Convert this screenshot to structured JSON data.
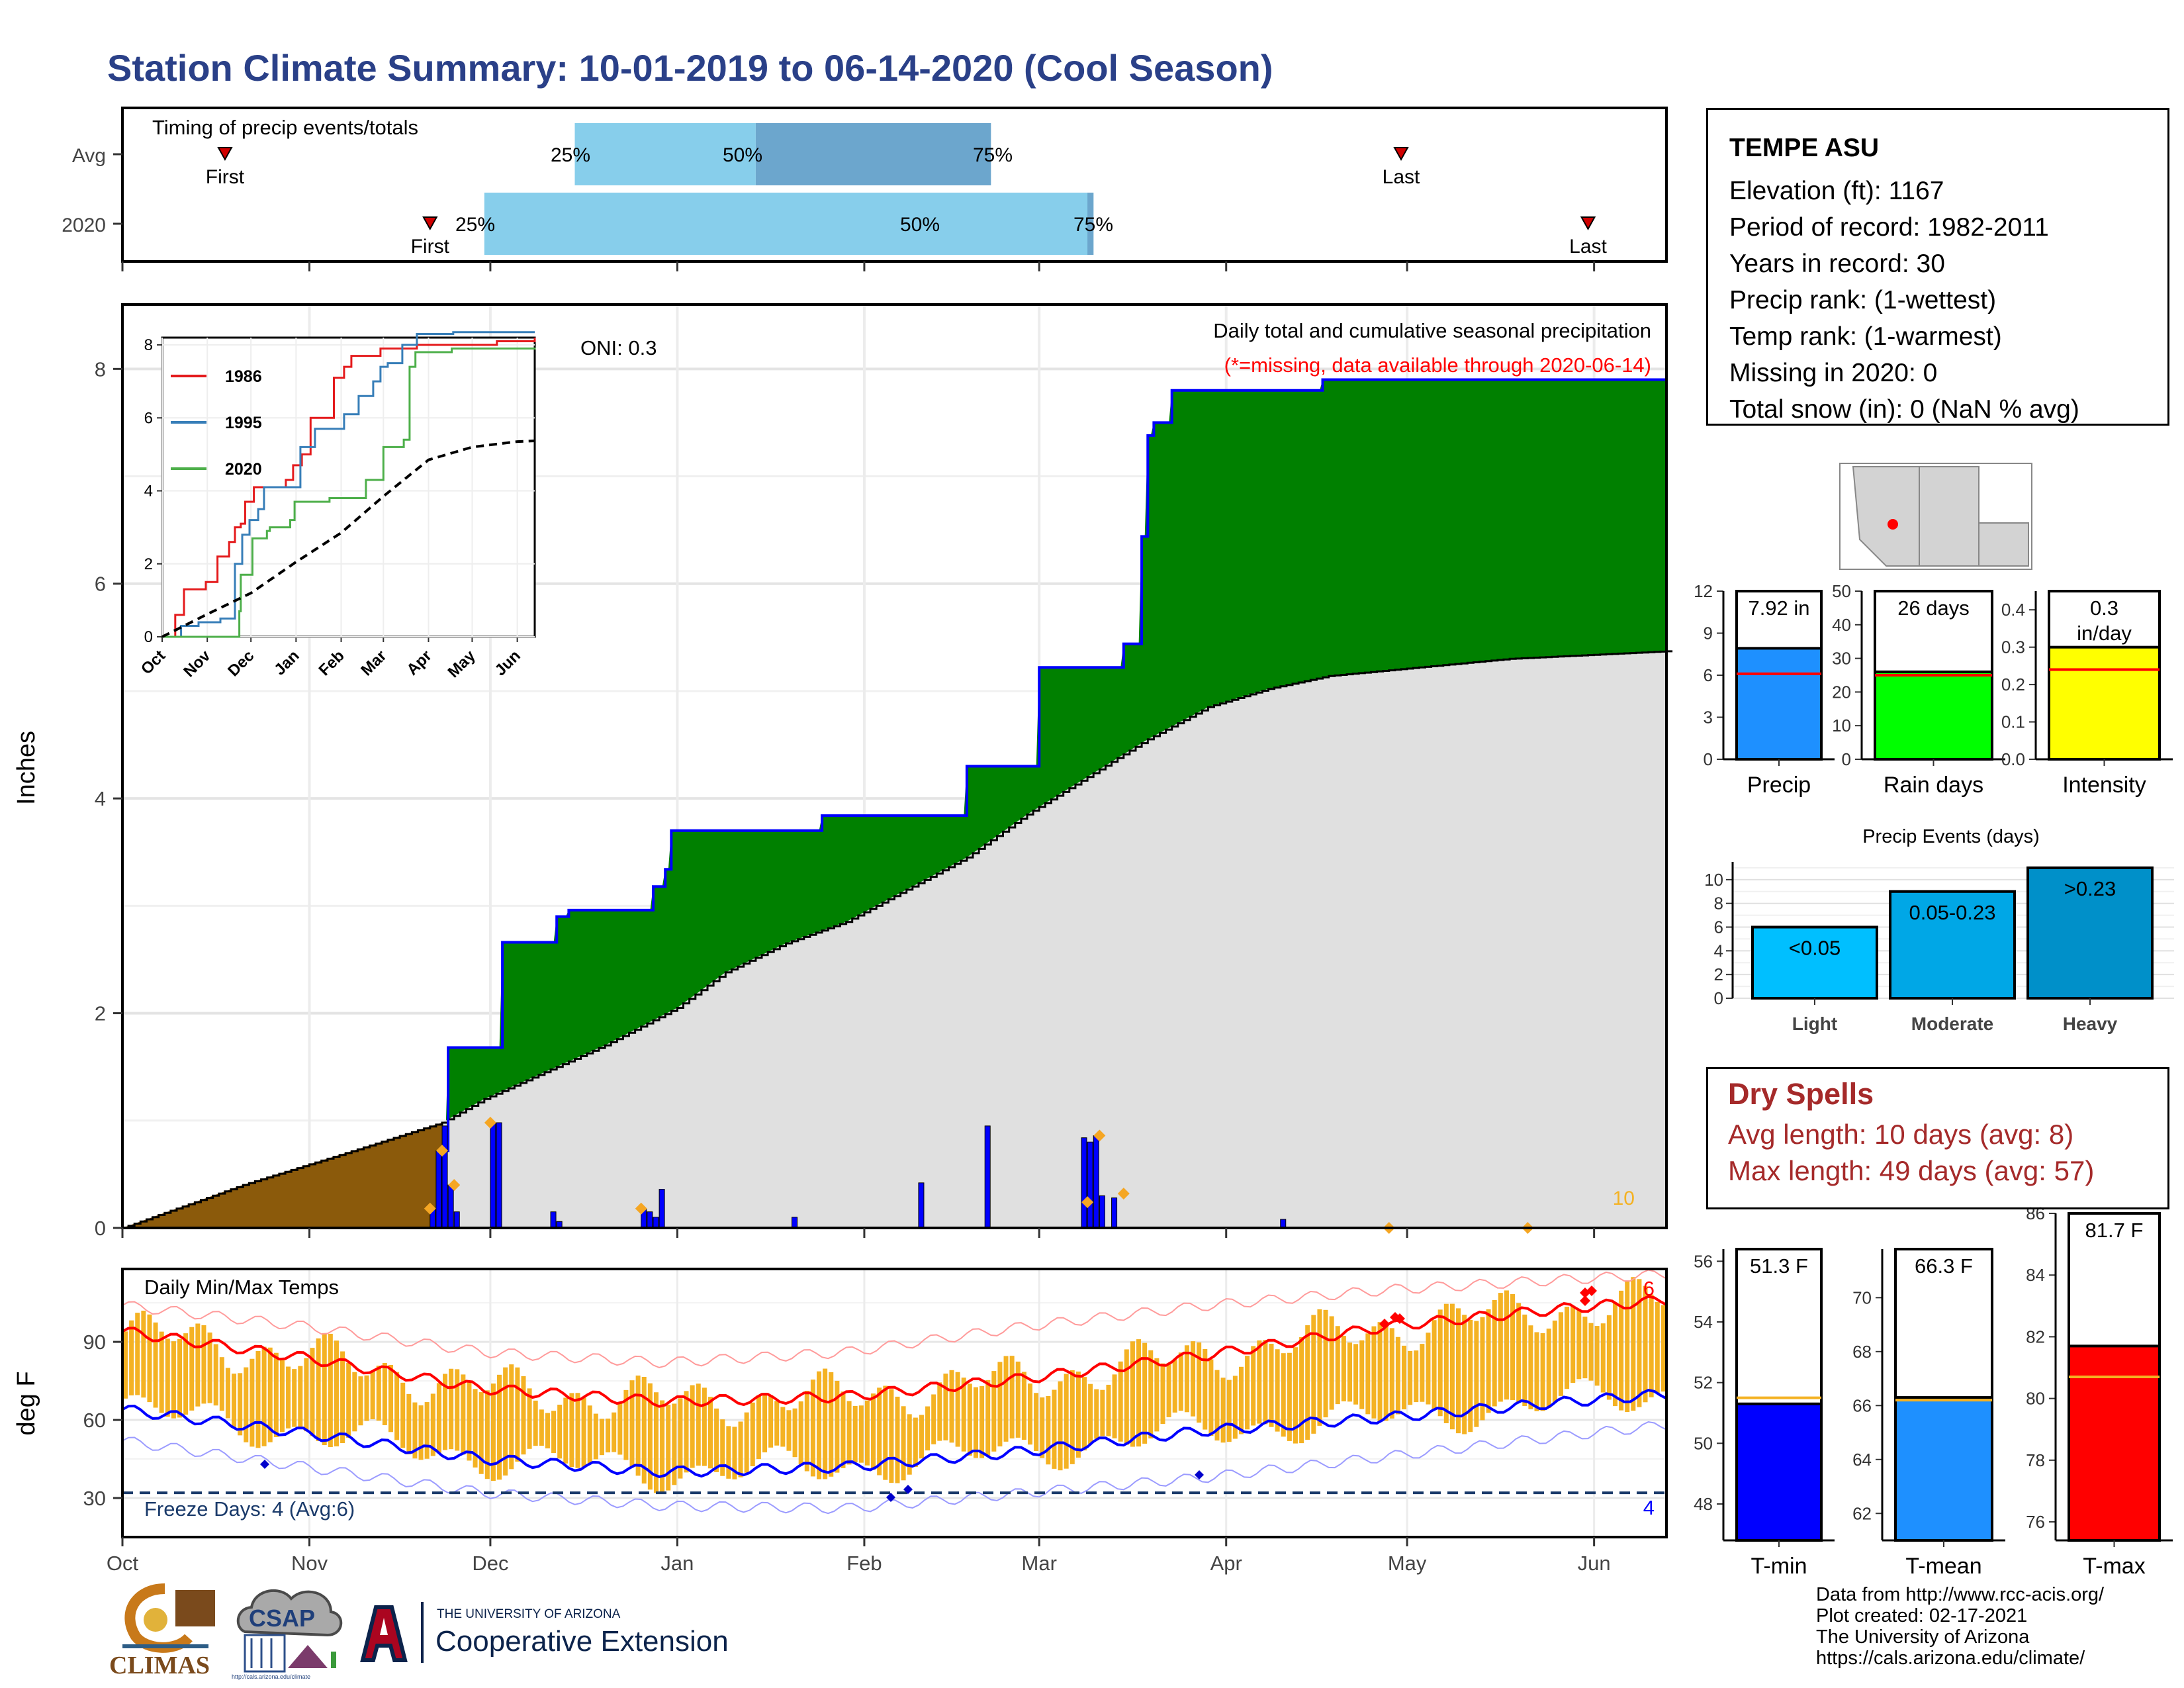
{
  "title": "Station Climate Summary: 10-01-2019 to 06-14-2020 (Cool Season)",
  "station": {
    "name": "TEMPE ASU",
    "rows": [
      "Elevation (ft): 1167",
      "Period of record: 1982-2011",
      "Years in record: 30",
      "Precip rank:  (1-wettest)",
      "Temp rank:  (1-warmest)",
      "Missing in 2020: 0",
      "Total snow (in): 0 (NaN % avg)"
    ]
  },
  "dry_spells": {
    "heading": "Dry Spells",
    "avg": "Avg length: 10 days (avg: 8)",
    "max": "Max length: 49 days (avg: 57)"
  },
  "footer": [
    "Data from http://www.rcc-acis.org/",
    "Plot created: 02-17-2021",
    "The University of Arizona",
    "https://cals.arizona.edu/climate/"
  ],
  "logos": {
    "climas": "CLIMAS",
    "csap": "CSAP",
    "ua_top": "THE UNIVERSITY OF ARIZONA",
    "ua_main": "Cooperative Extension",
    "csap_url": "http://cals.arizona.edu/climate"
  },
  "colors": {
    "title": "#2a4088",
    "green": "#008000",
    "blue": "#0000ff",
    "brown": "#8b5a0b",
    "gray": "#e0e0e0",
    "orange": "#f4b223",
    "red": "#ff0000",
    "dry": "#a52a2a"
  },
  "chart_data": [
    {
      "type": "bar",
      "title": "Timing of precip events/totals",
      "categories": [
        "Avg",
        "2020"
      ],
      "months": [
        "Oct",
        "Nov",
        "Dec",
        "Jan",
        "Feb",
        "Mar",
        "Apr",
        "May",
        "Jun"
      ],
      "series": [
        {
          "name": "Avg",
          "first": "10-18",
          "p25": "12-15",
          "p50": "01-14",
          "p75": "02-22",
          "last": "04-30"
        },
        {
          "name": "2020",
          "first": "11-21",
          "p25": "11-30",
          "p50": "03-10",
          "p75": "03-09",
          "last": "05-31"
        }
      ],
      "labels": {
        "first": "First",
        "last": "Last",
        "p25": "25%",
        "p50": "50%",
        "p75": "75%"
      }
    },
    {
      "type": "area",
      "title": "Daily total and cumulative seasonal precipitation",
      "subtitle": "(*=missing, data available through 2020-06-14)",
      "annotation": "ONI: 0.3",
      "corner_count": "10",
      "ylabel": "Inches",
      "ylim": [
        0,
        8.6
      ],
      "yticks": [
        0,
        2,
        4,
        6,
        8
      ],
      "xlim": [
        0,
        256
      ],
      "x_month_starts": [
        0,
        31,
        61,
        92,
        123,
        152,
        183,
        213,
        244
      ],
      "series": [
        {
          "name": "Cumulative 2020",
          "points": [
            [
              0,
              0
            ],
            [
              52,
              0
            ],
            [
              53,
              0.72
            ],
            [
              54,
              1.68
            ],
            [
              62,
              1.68
            ],
            [
              63,
              2.66
            ],
            [
              71,
              2.66
            ],
            [
              72,
              2.9
            ],
            [
              74,
              2.96
            ],
            [
              87,
              2.96
            ],
            [
              88,
              3.18
            ],
            [
              90,
              3.34
            ],
            [
              91,
              3.7
            ],
            [
              115,
              3.7
            ],
            [
              116,
              3.84
            ],
            [
              139,
              3.84
            ],
            [
              140,
              4.3
            ],
            [
              151,
              4.3
            ],
            [
              152,
              5.22
            ],
            [
              165,
              5.22
            ],
            [
              166,
              5.44
            ],
            [
              169,
              6.44
            ],
            [
              170,
              7.38
            ],
            [
              171,
              7.5
            ],
            [
              174,
              7.8
            ],
            [
              198,
              7.8
            ],
            [
              199,
              7.9
            ],
            [
              256,
              7.92
            ]
          ]
        },
        {
          "name": "Average cumulative",
          "points": [
            [
              0,
              0
            ],
            [
              20,
              0.4
            ],
            [
              40,
              0.75
            ],
            [
              53,
              0.98
            ],
            [
              60,
              1.2
            ],
            [
              70,
              1.45
            ],
            [
              80,
              1.7
            ],
            [
              92,
              2.05
            ],
            [
              100,
              2.38
            ],
            [
              110,
              2.65
            ],
            [
              120,
              2.85
            ],
            [
              130,
              3.15
            ],
            [
              140,
              3.45
            ],
            [
              150,
              3.85
            ],
            [
              160,
              4.2
            ],
            [
              170,
              4.55
            ],
            [
              180,
              4.85
            ],
            [
              190,
              5.02
            ],
            [
              200,
              5.14
            ],
            [
              215,
              5.22
            ],
            [
              230,
              5.3
            ],
            [
              256,
              5.37
            ]
          ]
        },
        {
          "name": "Daily precip",
          "bars": [
            [
              51,
              0.18
            ],
            [
              52,
              0.72
            ],
            [
              53,
              0.95
            ],
            [
              54,
              0.4
            ],
            [
              55,
              0.15
            ],
            [
              61,
              0.98
            ],
            [
              62,
              0.98
            ],
            [
              71,
              0.15
            ],
            [
              72,
              0.06
            ],
            [
              86,
              0.18
            ],
            [
              87,
              0.15
            ],
            [
              88,
              0.1
            ],
            [
              89,
              0.36
            ],
            [
              111,
              0.1
            ],
            [
              132,
              0.42
            ],
            [
              143,
              0.95
            ],
            [
              159,
              0.84
            ],
            [
              160,
              0.8
            ],
            [
              161,
              0.86
            ],
            [
              162,
              0.3
            ],
            [
              164,
              0.28
            ],
            [
              192,
              0.08
            ]
          ]
        }
      ],
      "inset": {
        "type": "line",
        "ylim": [
          0,
          8.2
        ],
        "yticks": [
          0,
          2,
          4,
          6,
          8
        ],
        "months": [
          "Oct",
          "Nov",
          "Dec",
          "Jan",
          "Feb",
          "Mar",
          "Apr",
          "May",
          "Jun"
        ],
        "series": [
          {
            "name": "1986",
            "color": "#e41a1c",
            "points": [
              [
                0,
                0
              ],
              [
                8,
                0
              ],
              [
                9,
                0.6
              ],
              [
                15,
                1.3
              ],
              [
                30,
                1.5
              ],
              [
                38,
                2.2
              ],
              [
                46,
                2.6
              ],
              [
                50,
                3.0
              ],
              [
                54,
                3.1
              ],
              [
                57,
                3.7
              ],
              [
                63,
                4.1
              ],
              [
                75,
                4.1
              ],
              [
                85,
                4.3
              ],
              [
                90,
                4.7
              ],
              [
                96,
                5.0
              ],
              [
                102,
                6.0
              ],
              [
                110,
                6.0
              ],
              [
                118,
                7.1
              ],
              [
                125,
                7.4
              ],
              [
                130,
                7.7
              ],
              [
                150,
                7.9
              ],
              [
                175,
                8.0
              ],
              [
                200,
                8.0
              ],
              [
                230,
                8.1
              ],
              [
                256,
                8.2
              ]
            ]
          },
          {
            "name": "1995",
            "color": "#377eb8",
            "points": [
              [
                0,
                0
              ],
              [
                12,
                0
              ],
              [
                13,
                0.3
              ],
              [
                25,
                0.4
              ],
              [
                40,
                0.5
              ],
              [
                50,
                2.0
              ],
              [
                55,
                2.8
              ],
              [
                60,
                3.2
              ],
              [
                66,
                3.5
              ],
              [
                70,
                4.1
              ],
              [
                85,
                4.1
              ],
              [
                95,
                5.2
              ],
              [
                105,
                5.7
              ],
              [
                120,
                5.7
              ],
              [
                125,
                6.1
              ],
              [
                135,
                6.6
              ],
              [
                145,
                7.0
              ],
              [
                150,
                7.4
              ],
              [
                155,
                7.5
              ],
              [
                165,
                8.0
              ],
              [
                175,
                8.3
              ],
              [
                190,
                8.3
              ],
              [
                200,
                8.5
              ],
              [
                256,
                8.5
              ]
            ]
          },
          {
            "name": "2020",
            "color": "#4daf4a",
            "points": [
              [
                0,
                0
              ],
              [
                52,
                0
              ],
              [
                53,
                0.7
              ],
              [
                54,
                1.7
              ],
              [
                62,
                2.7
              ],
              [
                72,
                2.9
              ],
              [
                74,
                3.0
              ],
              [
                88,
                3.2
              ],
              [
                91,
                3.7
              ],
              [
                115,
                3.8
              ],
              [
                140,
                4.3
              ],
              [
                152,
                5.2
              ],
              [
                166,
                5.4
              ],
              [
                170,
                7.4
              ],
              [
                174,
                7.8
              ],
              [
                199,
                7.9
              ],
              [
                256,
                7.92
              ]
            ]
          },
          {
            "name": "Average",
            "color": "#000000",
            "points": [
              [
                0,
                0
              ],
              [
                30,
                0.6
              ],
              [
                61,
                1.2
              ],
              [
                92,
                2.05
              ],
              [
                123,
                2.85
              ],
              [
                152,
                3.85
              ],
              [
                183,
                4.85
              ],
              [
                213,
                5.2
              ],
              [
                244,
                5.35
              ],
              [
                256,
                5.37
              ]
            ]
          }
        ]
      }
    },
    {
      "type": "line",
      "title": "Daily Min/Max Temps",
      "ylabel": "deg F",
      "ylim": [
        15,
        118
      ],
      "yticks": [
        30,
        60,
        90
      ],
      "freeze_label": "Freeze Days: 4 (Avg:6)",
      "freeze_line": 32,
      "hot_count": "6",
      "freeze_count": "4",
      "months": [
        "Oct",
        "Nov",
        "Dec",
        "Jan",
        "Feb",
        "Mar",
        "Apr",
        "May",
        "Jun"
      ],
      "avg_max": [
        [
          0,
          94
        ],
        [
          30,
          84
        ],
        [
          60,
          72
        ],
        [
          90,
          67
        ],
        [
          120,
          69
        ],
        [
          150,
          76
        ],
        [
          180,
          85
        ],
        [
          210,
          96
        ],
        [
          240,
          103
        ],
        [
          256,
          106
        ]
      ],
      "avg_min": [
        [
          0,
          64
        ],
        [
          30,
          55
        ],
        [
          60,
          45
        ],
        [
          90,
          40
        ],
        [
          120,
          42
        ],
        [
          150,
          48
        ],
        [
          180,
          56
        ],
        [
          210,
          61
        ],
        [
          240,
          67
        ],
        [
          256,
          70
        ]
      ],
      "rec_max": [
        [
          0,
          104
        ],
        [
          30,
          96
        ],
        [
          60,
          86
        ],
        [
          90,
          82
        ],
        [
          120,
          86
        ],
        [
          150,
          96
        ],
        [
          180,
          104
        ],
        [
          210,
          110
        ],
        [
          240,
          114
        ],
        [
          256,
          116
        ]
      ],
      "rec_min": [
        [
          0,
          52
        ],
        [
          30,
          42
        ],
        [
          60,
          32
        ],
        [
          90,
          27
        ],
        [
          120,
          26
        ],
        [
          150,
          32
        ],
        [
          180,
          38
        ],
        [
          210,
          46
        ],
        [
          240,
          54
        ],
        [
          256,
          58
        ]
      ]
    },
    {
      "type": "bar",
      "categories": [
        "Precip",
        "Rain days",
        "Intensity"
      ],
      "values": [
        7.92,
        26,
        0.3
      ],
      "averages": [
        6.1,
        25,
        0.24
      ],
      "labels": [
        "7.92 in",
        "26 days",
        "0.3\nin/day"
      ],
      "ylims": [
        [
          0,
          12
        ],
        [
          0,
          50
        ],
        [
          0,
          0.45
        ]
      ],
      "yticks": [
        [
          "0",
          "3",
          "6",
          "9",
          "12"
        ],
        [
          "0",
          "10",
          "20",
          "30",
          "40",
          "50"
        ],
        [
          "0.0",
          "0.1",
          "0.2",
          "0.3",
          "0.4"
        ]
      ]
    },
    {
      "type": "bar",
      "title": "Precip Events (days)",
      "categories": [
        "Light",
        "Moderate",
        "Heavy"
      ],
      "values": [
        6,
        9,
        11
      ],
      "labels": [
        "<0.05",
        "0.05-0.23",
        ">0.23"
      ],
      "ylim": [
        0,
        11.5
      ],
      "yticks": [
        0,
        2,
        4,
        6,
        8,
        10
      ]
    },
    {
      "type": "bar",
      "categories": [
        "T-min",
        "T-mean",
        "T-max"
      ],
      "values": [
        51.3,
        66.3,
        81.7
      ],
      "averages": [
        51.5,
        66.2,
        80.7
      ],
      "labels": [
        "51.3 F",
        "66.3 F",
        "81.7 F"
      ],
      "ylims": [
        [
          46.8,
          56.4
        ],
        [
          61.0,
          71.8
        ],
        [
          75.4,
          86
        ]
      ],
      "yticks": [
        [
          "48",
          "50",
          "52",
          "54",
          "56"
        ],
        [
          "62",
          "64",
          "66",
          "68",
          "70"
        ],
        [
          "76",
          "78",
          "80",
          "82",
          "84",
          "86"
        ]
      ]
    }
  ]
}
